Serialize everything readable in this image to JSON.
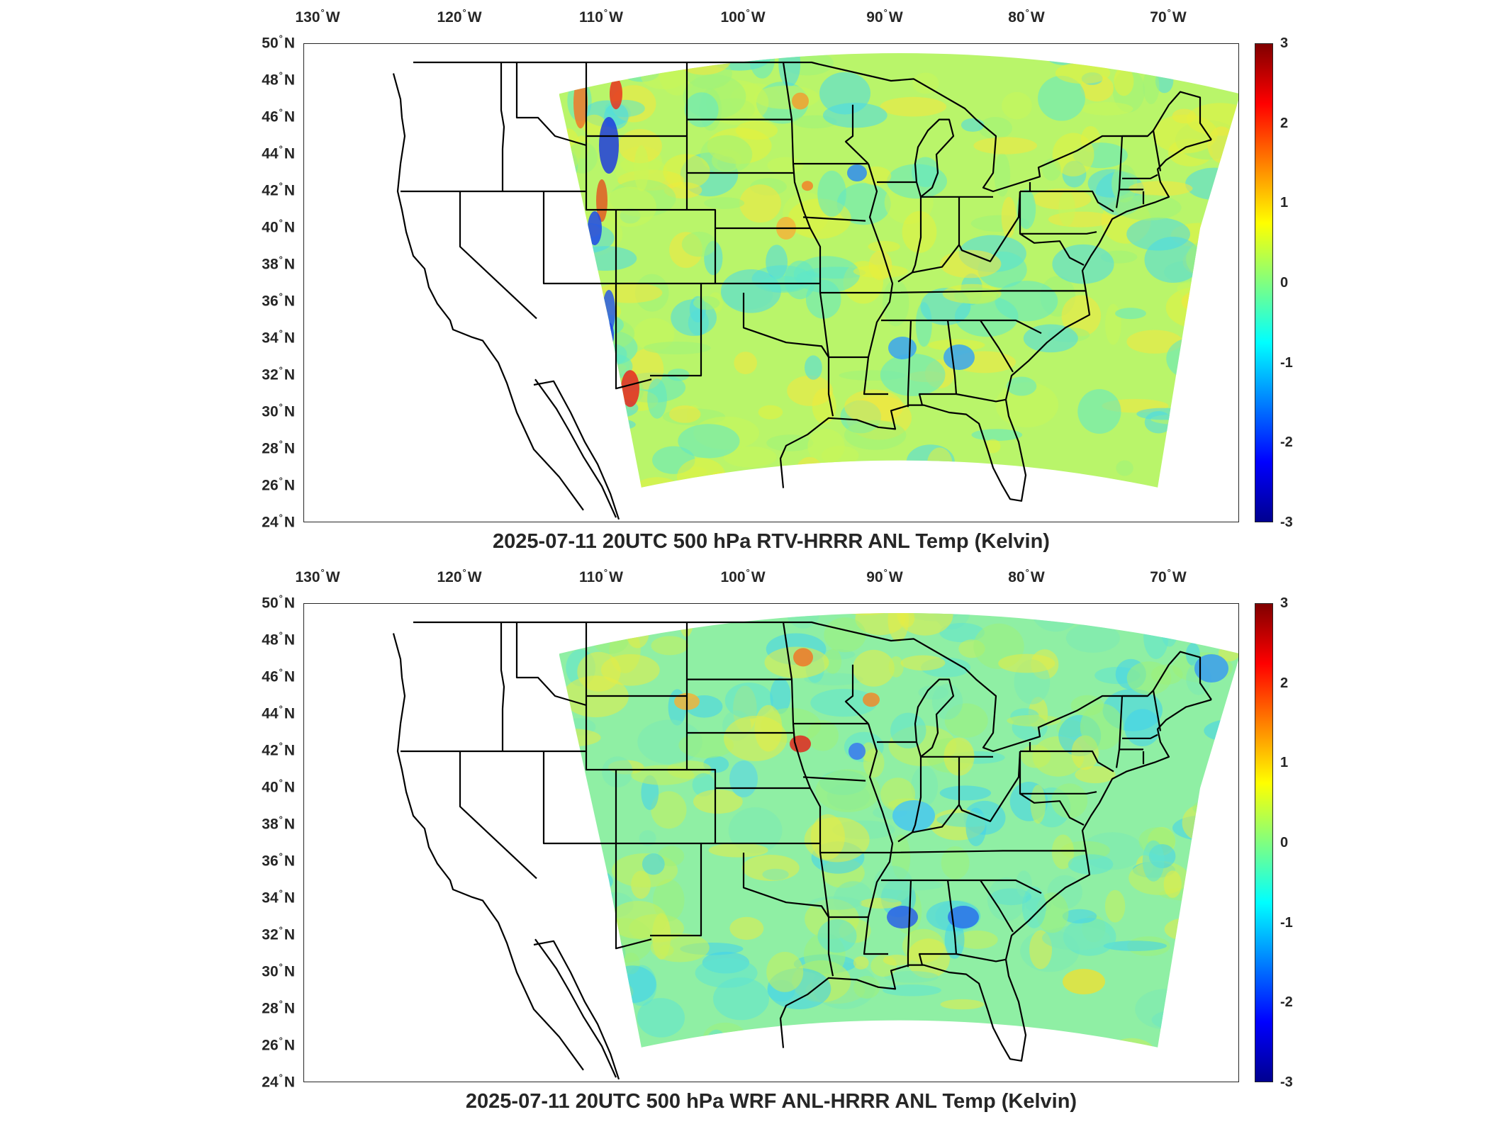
{
  "panels": [
    {
      "title": "2025-07-11 20UTC 500 hPa RTV-HRRR ANL Temp (Kelvin)",
      "variant": "rtv"
    },
    {
      "title": "2025-07-11 20UTC 500 hPa WRF ANL-HRRR ANL Temp (Kelvin)",
      "variant": "wrf"
    }
  ],
  "map": {
    "lon_range": [
      -131,
      -65
    ],
    "lat_range": [
      24,
      50
    ],
    "lon_ticks": [
      {
        "value": -130,
        "num": "130",
        "hemi": "W"
      },
      {
        "value": -120,
        "num": "120",
        "hemi": "W"
      },
      {
        "value": -110,
        "num": "110",
        "hemi": "W"
      },
      {
        "value": -100,
        "num": "100",
        "hemi": "W"
      },
      {
        "value": -90,
        "num": "90",
        "hemi": "W"
      },
      {
        "value": -80,
        "num": "80",
        "hemi": "W"
      },
      {
        "value": -70,
        "num": "70",
        "hemi": "W"
      }
    ],
    "lat_ticks": [
      {
        "value": 50,
        "num": "50",
        "hemi": "N"
      },
      {
        "value": 48,
        "num": "48",
        "hemi": "N"
      },
      {
        "value": 46,
        "num": "46",
        "hemi": "N"
      },
      {
        "value": 44,
        "num": "44",
        "hemi": "N"
      },
      {
        "value": 42,
        "num": "42",
        "hemi": "N"
      },
      {
        "value": 40,
        "num": "40",
        "hemi": "N"
      },
      {
        "value": 38,
        "num": "38",
        "hemi": "N"
      },
      {
        "value": 36,
        "num": "36",
        "hemi": "N"
      },
      {
        "value": 34,
        "num": "34",
        "hemi": "N"
      },
      {
        "value": 32,
        "num": "32",
        "hemi": "N"
      },
      {
        "value": 30,
        "num": "30",
        "hemi": "N"
      },
      {
        "value": 28,
        "num": "28",
        "hemi": "N"
      },
      {
        "value": 26,
        "num": "26",
        "hemi": "N"
      },
      {
        "value": 24,
        "num": "24",
        "hemi": "N"
      }
    ],
    "colorbar": {
      "min": -3,
      "max": 3,
      "ticks": [
        "3",
        "2",
        "1",
        "0",
        "-1",
        "-2",
        "-3"
      ],
      "colormap": "jet",
      "colors": [
        "#00008f",
        "#0000ff",
        "#0080ff",
        "#00ffff",
        "#80ff80",
        "#ffff00",
        "#ff8000",
        "#ff0000",
        "#800000"
      ]
    }
  }
}
